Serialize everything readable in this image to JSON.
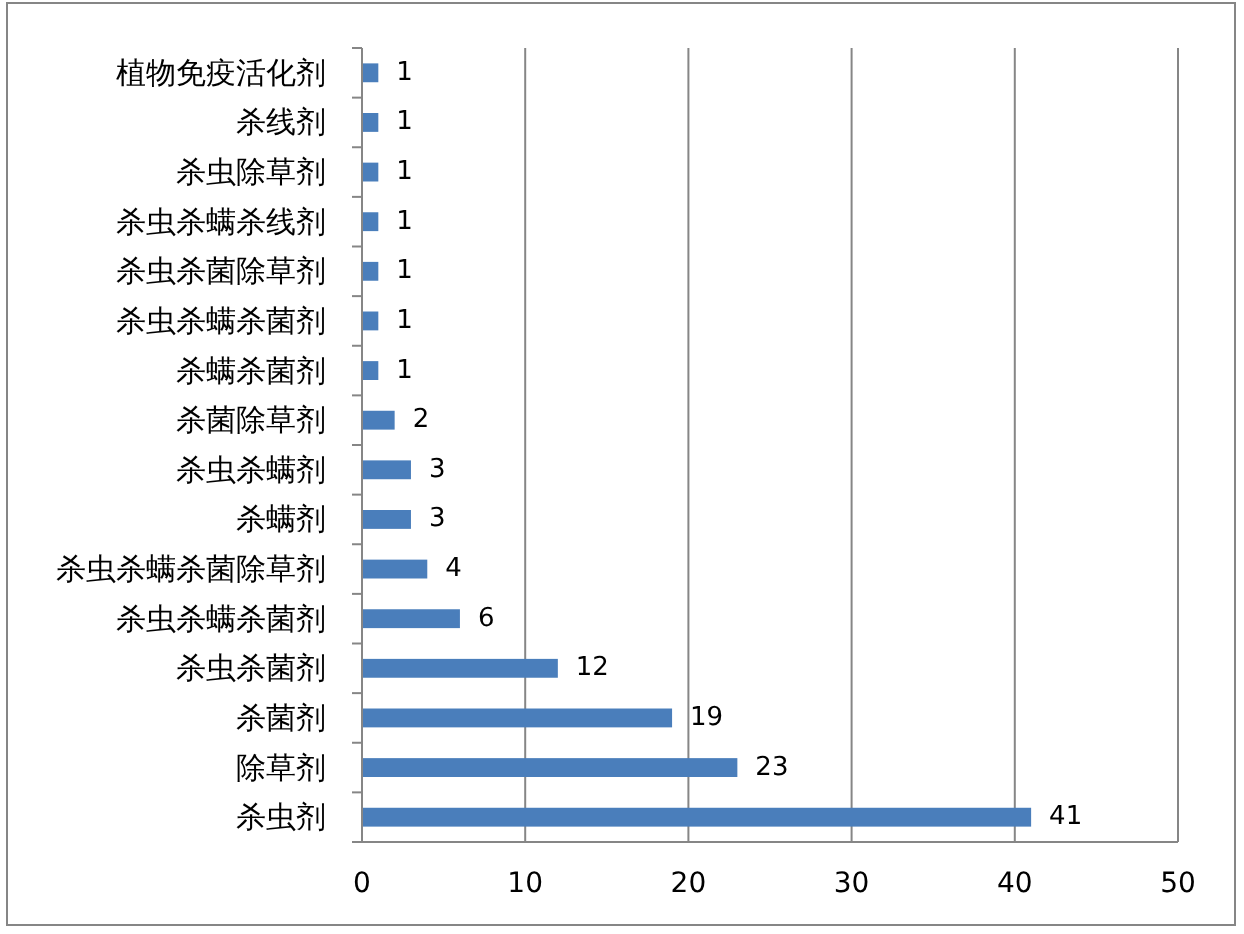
{
  "chart_data": {
    "type": "bar",
    "orientation": "horizontal",
    "categories": [
      "植物免疫活化剂",
      "杀线剂",
      "杀虫除草剂",
      "杀虫杀螨杀线剂",
      "杀虫杀菌除草剂",
      "杀虫杀螨杀菌剂",
      "杀螨杀菌剂",
      "杀菌除草剂",
      "杀虫杀螨剂",
      "杀螨剂",
      "杀虫杀螨杀菌除草剂",
      "杀虫杀螨杀菌剂",
      "杀虫杀菌剂",
      "杀菌剂",
      "除草剂",
      "杀虫剂"
    ],
    "values": [
      1,
      1,
      1,
      1,
      1,
      1,
      1,
      2,
      3,
      3,
      4,
      6,
      12,
      19,
      23,
      41
    ],
    "color": "#4a7ebb",
    "xlim": [
      0,
      50
    ],
    "xticks": [
      0,
      10,
      20,
      30,
      40,
      50
    ],
    "grid": "x",
    "data_labels": true
  }
}
